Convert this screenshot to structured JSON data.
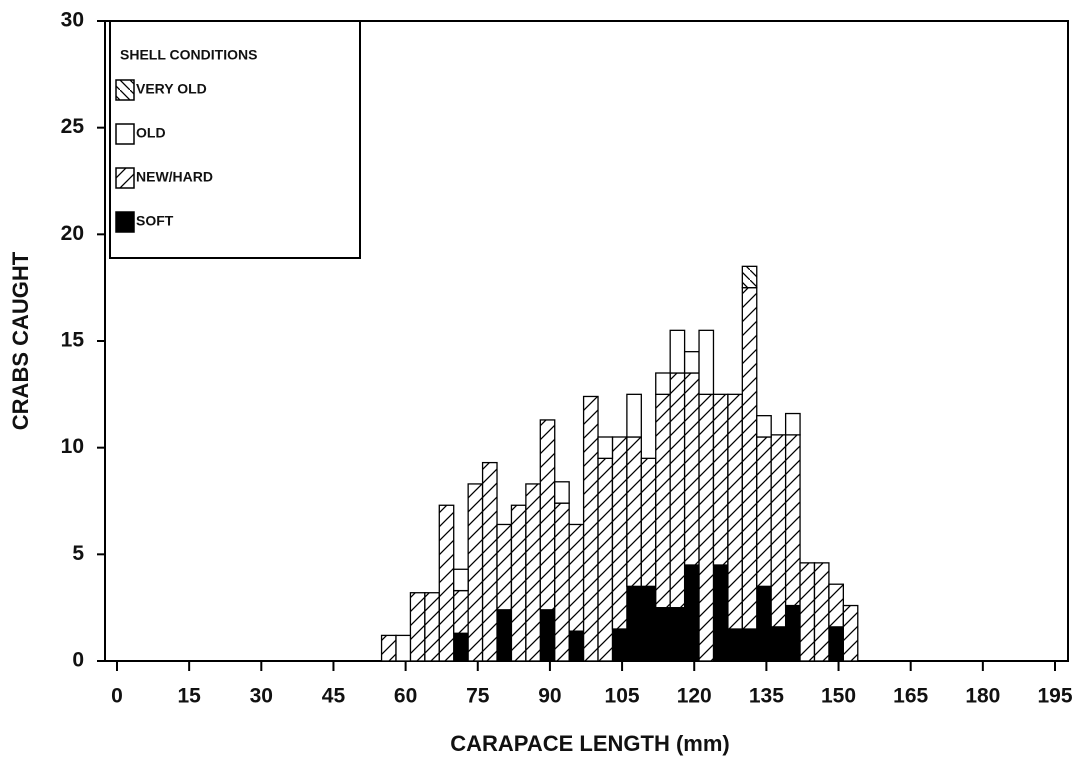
{
  "chart_data": {
    "type": "histogram",
    "xlabel": "CARAPACE LENGTH (mm)",
    "ylabel": "CRABS CAUGHT",
    "legend_title": "SHELL CONDITIONS",
    "legend": "upper left",
    "stacked": true,
    "bins": [
      55,
      58,
      61,
      64,
      67,
      70,
      73,
      76,
      79,
      82,
      85,
      88,
      91,
      94,
      97,
      100,
      103,
      106,
      109,
      112,
      115,
      118,
      121,
      124,
      127,
      130,
      133,
      136,
      139,
      142,
      145,
      148,
      151,
      154
    ],
    "series": [
      {
        "name": "SOFT",
        "color": "#000000",
        "pattern": "solid",
        "values": [
          0,
          0,
          0,
          0,
          0,
          1.3,
          0,
          0,
          2.4,
          0,
          0,
          2.4,
          0,
          1.4,
          0,
          0,
          1.5,
          3.5,
          3.5,
          2.5,
          2.5,
          4.5,
          0,
          4.5,
          1.5,
          1.5,
          3.5,
          1.6,
          2.6,
          0,
          0,
          1.6,
          0
        ]
      },
      {
        "name": "NEW/HARD",
        "color": "#000000",
        "pattern": "hatch",
        "values": [
          1.2,
          0,
          3.2,
          3.2,
          7.3,
          2,
          8.3,
          9.3,
          4,
          7.3,
          8.3,
          8.9,
          7.4,
          5,
          12.4,
          9.5,
          9,
          7,
          6,
          10,
          11,
          9,
          12.5,
          8,
          11,
          16,
          7,
          9,
          8,
          4.6,
          4.6,
          2,
          2.6
        ]
      },
      {
        "name": "OLD",
        "color": "#000000",
        "pattern": "empty",
        "values": [
          0,
          1.2,
          0,
          0,
          0,
          1,
          0,
          0,
          0,
          0,
          0,
          0,
          1,
          0,
          0,
          1,
          0,
          2,
          0,
          1,
          2,
          1,
          3,
          0,
          0,
          0,
          1,
          0,
          1,
          0,
          0,
          0,
          0
        ]
      },
      {
        "name": "VERY OLD",
        "color": "#000000",
        "pattern": "backhatch",
        "values": [
          0,
          0,
          0,
          0,
          0,
          0,
          0,
          0,
          0,
          0,
          0,
          0,
          0,
          0,
          0,
          0,
          0,
          0,
          0,
          0,
          0,
          0,
          0,
          0,
          0,
          1,
          0,
          0,
          0,
          0,
          0,
          0,
          0
        ]
      }
    ],
    "xlim": [
      0,
      195
    ],
    "xticks": [
      0,
      15,
      30,
      45,
      60,
      75,
      90,
      105,
      120,
      135,
      150,
      165,
      180,
      195
    ],
    "ylim": [
      0,
      30
    ],
    "yticks": [
      0,
      5,
      10,
      15,
      20,
      25,
      30
    ]
  }
}
